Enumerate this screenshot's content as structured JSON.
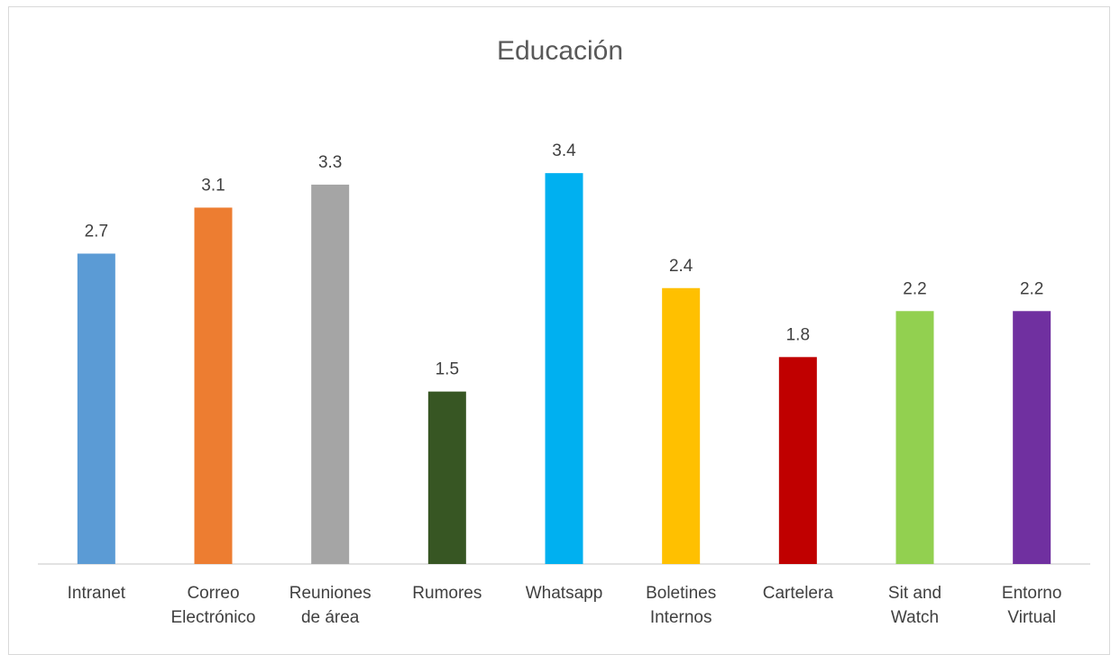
{
  "chart_data": {
    "type": "bar",
    "title": "Educación",
    "categories": [
      [
        "Intranet"
      ],
      [
        "Correo",
        "Electrónico"
      ],
      [
        "Reuniones",
        "de área"
      ],
      [
        "Rumores"
      ],
      [
        "Whatsapp"
      ],
      [
        "Boletines",
        "Internos"
      ],
      [
        "Cartelera"
      ],
      [
        "Sit and",
        "Watch"
      ],
      [
        "Entorno",
        "Virtual"
      ]
    ],
    "values": [
      2.7,
      3.1,
      3.3,
      1.5,
      3.4,
      2.4,
      1.8,
      2.2,
      2.2
    ],
    "data_labels": [
      "2.7",
      "3.1",
      "3.3",
      "1.5",
      "3.4",
      "2.4",
      "1.8",
      "2.2",
      "2.2"
    ],
    "colors": [
      "#5b9bd5",
      "#ed7d31",
      "#a5a5a5",
      "#375623",
      "#00b0f0",
      "#ffc000",
      "#c00000",
      "#92d050",
      "#7030a0"
    ],
    "xlabel": "",
    "ylabel": "",
    "ylim": [
      0,
      3.4
    ],
    "grid": false,
    "legend": "none"
  }
}
